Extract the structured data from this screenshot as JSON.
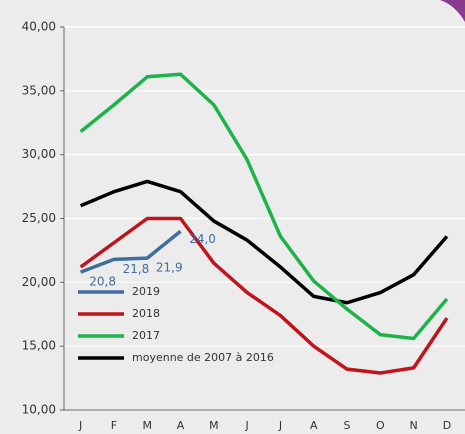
{
  "chart_data": {
    "type": "line",
    "categories": [
      "J",
      "F",
      "M",
      "A",
      "M",
      "J",
      "J",
      "A",
      "S",
      "O",
      "N",
      "D"
    ],
    "series": [
      {
        "name": "2019",
        "color": "#3f6d9e",
        "values": [
          20.8,
          21.8,
          21.9,
          24.0,
          null,
          null,
          null,
          null,
          null,
          null,
          null,
          null
        ],
        "value_labels": [
          "20,8",
          "21,8",
          "21,9",
          "24,0",
          null,
          null,
          null,
          null,
          null,
          null,
          null,
          null
        ]
      },
      {
        "name": "2018",
        "color": "#c0141c",
        "values": [
          21.2,
          23.1,
          25.0,
          25.0,
          21.5,
          19.2,
          17.4,
          15.0,
          13.2,
          12.9,
          13.3,
          17.2
        ]
      },
      {
        "name": "2017",
        "color": "#1db34a",
        "values": [
          31.8,
          33.9,
          36.1,
          36.3,
          33.9,
          29.6,
          23.6,
          20.1,
          17.9,
          15.9,
          15.6,
          18.7
        ]
      },
      {
        "name": "moyenne de 2007 à 2016",
        "color": "#000000",
        "values": [
          26.0,
          27.1,
          27.9,
          27.1,
          24.8,
          23.3,
          21.2,
          18.9,
          18.4,
          19.2,
          20.6,
          23.6
        ]
      }
    ],
    "ylim": [
      10,
      40
    ],
    "yticks": [
      {
        "value": 10,
        "label": "10,00"
      },
      {
        "value": 15,
        "label": "15,00"
      },
      {
        "value": 20,
        "label": "20,00"
      },
      {
        "value": 25,
        "label": "25,00"
      },
      {
        "value": 30,
        "label": "30,00"
      },
      {
        "value": 35,
        "label": "35,00"
      },
      {
        "value": 40,
        "label": "40,00"
      }
    ],
    "grid": true,
    "legend": "lower left"
  }
}
